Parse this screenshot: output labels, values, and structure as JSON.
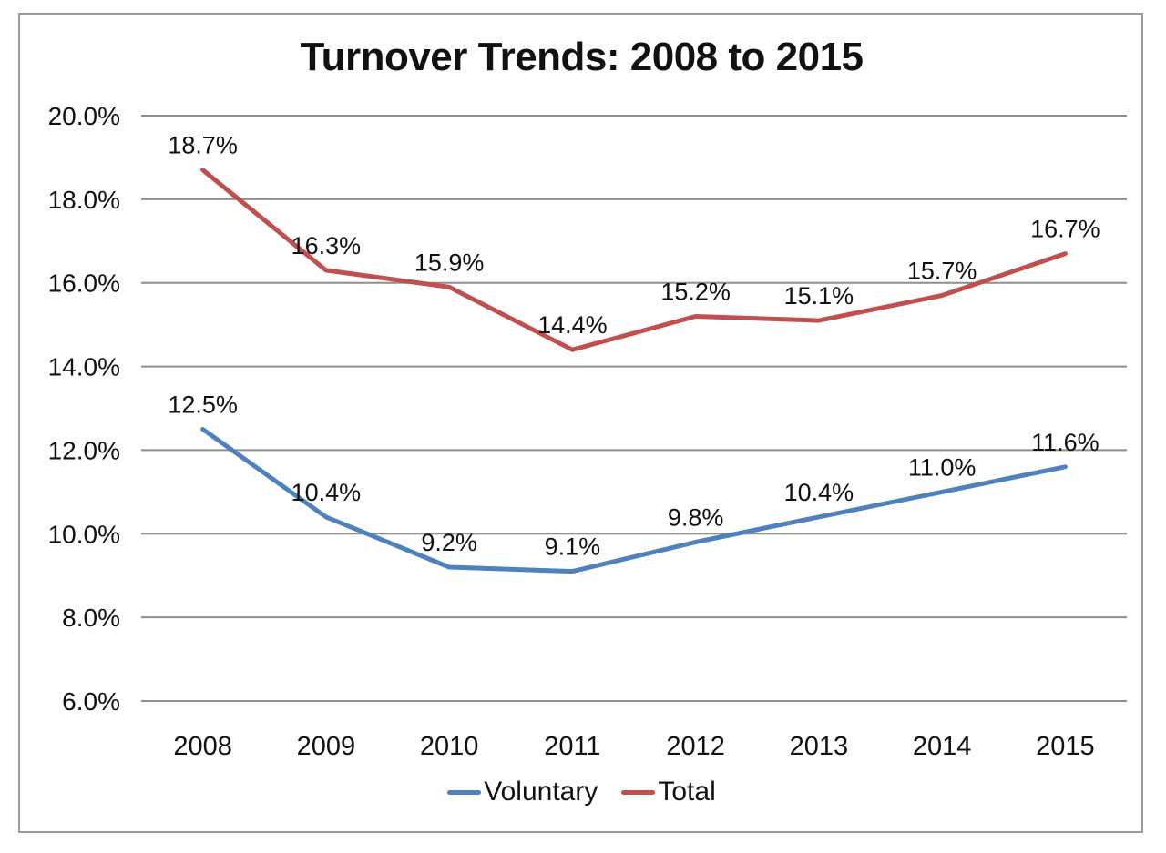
{
  "chart_data": {
    "type": "line",
    "title": "Turnover Trends: 2008 to 2015",
    "categories": [
      "2008",
      "2009",
      "2010",
      "2011",
      "2012",
      "2013",
      "2014",
      "2015"
    ],
    "series": [
      {
        "name": "Voluntary",
        "color": "#4F81BD",
        "values": [
          12.5,
          10.4,
          9.2,
          9.1,
          9.8,
          10.4,
          11.0,
          11.6
        ],
        "point_labels": [
          "12.5%",
          "10.4%",
          "9.2%",
          "9.1%",
          "9.8%",
          "10.4%",
          "11.0%",
          "11.6%"
        ]
      },
      {
        "name": "Total",
        "color": "#C0504D",
        "values": [
          18.7,
          16.3,
          15.9,
          14.4,
          15.2,
          15.1,
          15.7,
          16.7
        ],
        "point_labels": [
          "18.7%",
          "16.3%",
          "15.9%",
          "14.4%",
          "15.2%",
          "15.1%",
          "15.7%",
          "16.7%"
        ]
      }
    ],
    "y_axis": {
      "min": 6.0,
      "max": 20.0,
      "step": 2.0,
      "tick_labels": [
        "20.0%",
        "18.0%",
        "16.0%",
        "14.0%",
        "12.0%",
        "10.0%",
        "8.0%",
        "6.0%"
      ]
    },
    "legend": {
      "position": "bottom",
      "entries": [
        "Voluntary",
        "Total"
      ]
    },
    "grid": true
  },
  "colors": {
    "voluntary_line": "#4F81BD",
    "total_line": "#C0504D",
    "gridline": "#8e8e8e",
    "frame_border": "#9b9b9b",
    "text": "#111111",
    "background": "#FFFFFF"
  }
}
